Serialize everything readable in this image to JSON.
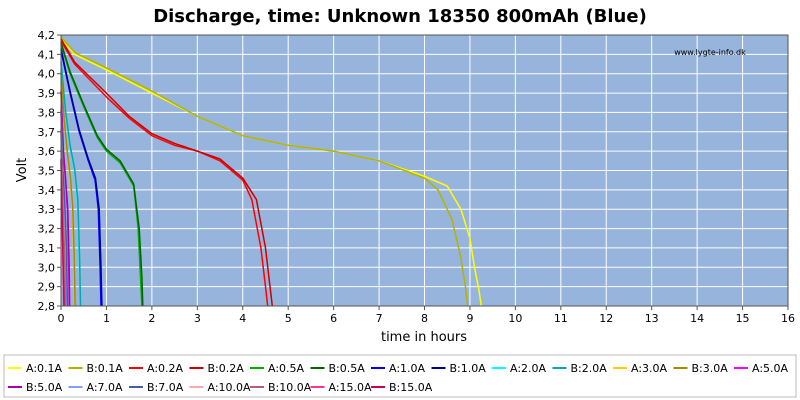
{
  "chart_data": {
    "type": "line",
    "title": "Discharge, time: Unknown 18350 800mAh (Blue)",
    "xlabel": "time in hours",
    "ylabel": "Volt",
    "watermark": "www.lygte-info.dk",
    "xlim": [
      0,
      16
    ],
    "ylim": [
      2.8,
      4.2
    ],
    "xticks": [
      "0",
      "1",
      "2",
      "3",
      "4",
      "5",
      "6",
      "7",
      "8",
      "9",
      "10",
      "11",
      "12",
      "13",
      "14",
      "15",
      "16"
    ],
    "yticks": [
      "2,8",
      "2,9",
      "3,0",
      "3,1",
      "3,2",
      "3,3",
      "3,4",
      "3,5",
      "3,6",
      "3,7",
      "3,8",
      "3,9",
      "4,0",
      "4,1",
      "4,2"
    ],
    "grid": true,
    "plot_background": "#97b4dc",
    "grid_color": "#ffffff",
    "legend_position": "bottom",
    "series": [
      {
        "name": "A:0.1A",
        "color": "#ffff00",
        "x": [
          0,
          0.3,
          1,
          2,
          3,
          4,
          5,
          6,
          7,
          8,
          8.5,
          8.8,
          9.0,
          9.1,
          9.2,
          9.25
        ],
        "y": [
          4.18,
          4.1,
          4.02,
          3.9,
          3.78,
          3.68,
          3.63,
          3.6,
          3.55,
          3.47,
          3.42,
          3.3,
          3.15,
          3.0,
          2.88,
          2.8
        ]
      },
      {
        "name": "B:0.1A",
        "color": "#b3b300",
        "x": [
          0,
          0.3,
          1,
          2,
          3,
          4,
          5,
          6,
          7,
          8,
          8.3,
          8.6,
          8.8,
          8.9,
          8.95
        ],
        "y": [
          4.19,
          4.11,
          4.03,
          3.91,
          3.78,
          3.68,
          3.63,
          3.6,
          3.55,
          3.46,
          3.4,
          3.25,
          3.05,
          2.9,
          2.8
        ]
      },
      {
        "name": "A:0.2A",
        "color": "#ff0000",
        "x": [
          0,
          0.3,
          1,
          1.5,
          2,
          2.5,
          3,
          3.5,
          4,
          4.2,
          4.4,
          4.5,
          4.55
        ],
        "y": [
          4.17,
          4.05,
          3.88,
          3.77,
          3.68,
          3.63,
          3.6,
          3.55,
          3.45,
          3.35,
          3.1,
          2.9,
          2.8
        ]
      },
      {
        "name": "B:0.2A",
        "color": "#cc0000",
        "x": [
          0,
          0.3,
          1,
          1.5,
          2,
          2.5,
          3,
          3.5,
          4,
          4.3,
          4.5,
          4.6,
          4.65
        ],
        "y": [
          4.18,
          4.06,
          3.9,
          3.78,
          3.69,
          3.64,
          3.6,
          3.56,
          3.46,
          3.35,
          3.1,
          2.9,
          2.8
        ]
      },
      {
        "name": "A:0.5A",
        "color": "#00aa00",
        "x": [
          0,
          0.2,
          0.5,
          0.8,
          1,
          1.3,
          1.6,
          1.7,
          1.75,
          1.78
        ],
        "y": [
          4.15,
          4.0,
          3.83,
          3.67,
          3.6,
          3.54,
          3.42,
          3.2,
          2.95,
          2.8
        ]
      },
      {
        "name": "B:0.5A",
        "color": "#006600",
        "x": [
          0,
          0.2,
          0.5,
          0.8,
          1,
          1.3,
          1.6,
          1.72,
          1.78,
          1.8
        ],
        "y": [
          4.16,
          4.01,
          3.84,
          3.68,
          3.61,
          3.55,
          3.43,
          3.2,
          2.95,
          2.8
        ]
      },
      {
        "name": "A:1.0A",
        "color": "#0000ff",
        "x": [
          0,
          0.2,
          0.4,
          0.6,
          0.75,
          0.82,
          0.86,
          0.88
        ],
        "y": [
          4.12,
          3.9,
          3.7,
          3.55,
          3.45,
          3.3,
          3.0,
          2.8
        ]
      },
      {
        "name": "B:1.0A",
        "color": "#000099",
        "x": [
          0,
          0.2,
          0.4,
          0.6,
          0.76,
          0.84,
          0.88,
          0.9
        ],
        "y": [
          4.13,
          3.91,
          3.71,
          3.56,
          3.46,
          3.3,
          3.0,
          2.8
        ]
      },
      {
        "name": "A:2.0A",
        "color": "#00ffff",
        "x": [
          0,
          0.1,
          0.2,
          0.3,
          0.36,
          0.4,
          0.42
        ],
        "y": [
          4.05,
          3.8,
          3.62,
          3.5,
          3.35,
          3.05,
          2.8
        ]
      },
      {
        "name": "B:2.0A",
        "color": "#00aaaa",
        "x": [
          0,
          0.1,
          0.2,
          0.3,
          0.37,
          0.41,
          0.43
        ],
        "y": [
          4.06,
          3.81,
          3.63,
          3.51,
          3.35,
          3.05,
          2.8
        ]
      },
      {
        "name": "A:3.0A",
        "color": "#ffcc00",
        "x": [
          0,
          0.07,
          0.14,
          0.2,
          0.25,
          0.28,
          0.3
        ],
        "y": [
          4.0,
          3.75,
          3.58,
          3.45,
          3.3,
          3.05,
          2.8
        ]
      },
      {
        "name": "B:3.0A",
        "color": "#aa8800",
        "x": [
          0,
          0.07,
          0.14,
          0.21,
          0.26,
          0.29,
          0.31
        ],
        "y": [
          4.01,
          3.76,
          3.59,
          3.46,
          3.3,
          3.05,
          2.8
        ]
      },
      {
        "name": "A:5.0A",
        "color": "#ff00ff",
        "x": [
          0,
          0.05,
          0.1,
          0.14,
          0.17,
          0.18
        ],
        "y": [
          3.9,
          3.6,
          3.45,
          3.3,
          3.0,
          2.8
        ]
      },
      {
        "name": "B:5.0A",
        "color": "#aa00aa",
        "x": [
          0,
          0.05,
          0.1,
          0.15,
          0.18,
          0.19
        ],
        "y": [
          3.91,
          3.61,
          3.46,
          3.3,
          3.0,
          2.8
        ]
      },
      {
        "name": "A:7.0A",
        "color": "#80a0ff",
        "x": [
          0,
          0.04,
          0.08,
          0.11,
          0.13
        ],
        "y": [
          3.8,
          3.5,
          3.35,
          3.1,
          2.8
        ]
      },
      {
        "name": "B:7.0A",
        "color": "#4060a0",
        "x": [
          0,
          0.04,
          0.08,
          0.12,
          0.14
        ],
        "y": [
          3.81,
          3.51,
          3.35,
          3.1,
          2.8
        ]
      },
      {
        "name": "A:10.0A",
        "color": "#ffaaaa",
        "x": [
          0,
          0.03,
          0.06,
          0.08,
          0.09
        ],
        "y": [
          3.7,
          3.4,
          3.2,
          3.0,
          2.8
        ]
      },
      {
        "name": "B:10.0A",
        "color": "#b06070",
        "x": [
          0,
          0.03,
          0.06,
          0.085,
          0.095
        ],
        "y": [
          3.71,
          3.41,
          3.2,
          3.0,
          2.8
        ]
      },
      {
        "name": "A:15.0A",
        "color": "#ff3399",
        "x": [
          0,
          0.02,
          0.04,
          0.05,
          0.06
        ],
        "y": [
          3.55,
          3.3,
          3.1,
          2.95,
          2.8
        ]
      },
      {
        "name": "B:15.0A",
        "color": "#cc0055",
        "x": [
          0,
          0.02,
          0.04,
          0.055,
          0.065
        ],
        "y": [
          3.56,
          3.31,
          3.1,
          2.95,
          2.8
        ]
      }
    ]
  }
}
